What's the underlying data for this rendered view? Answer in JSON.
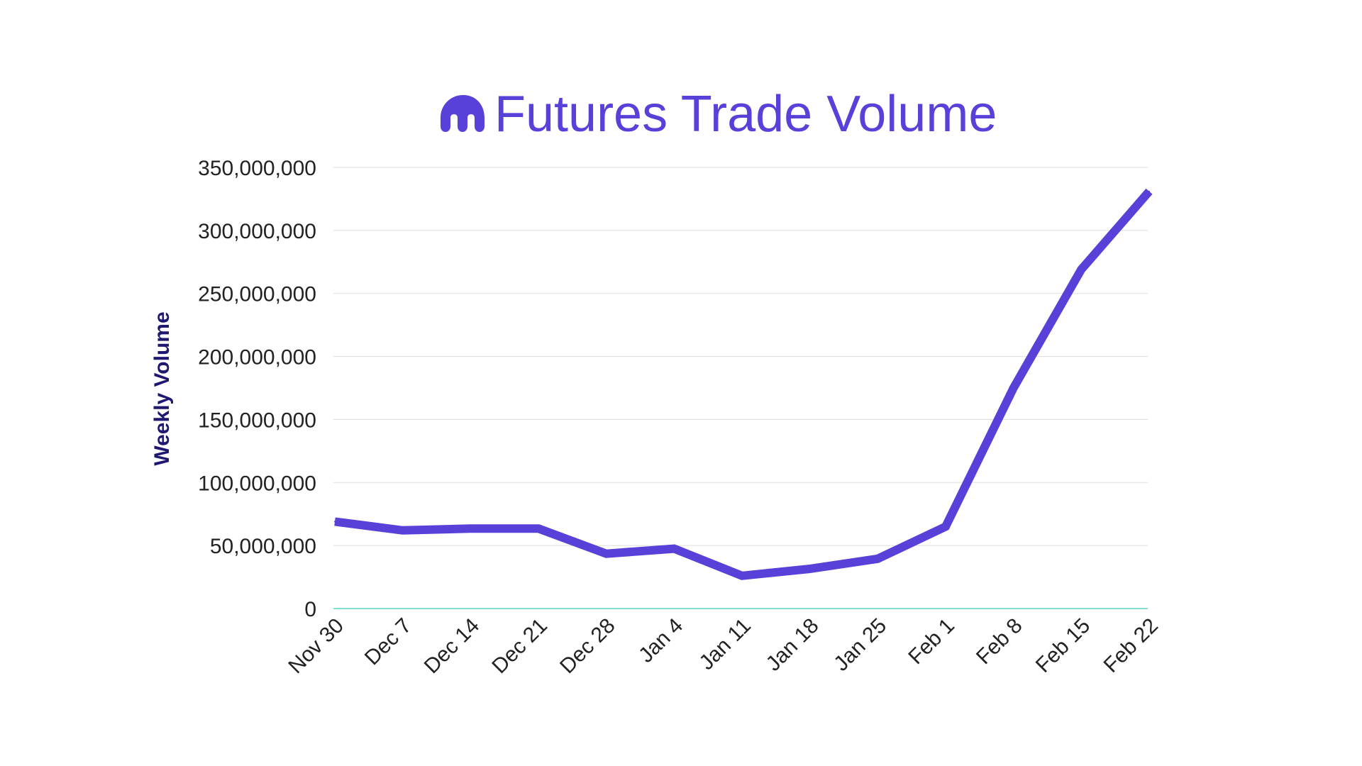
{
  "logo": {
    "icon": "kraken-logo-icon"
  },
  "colors": {
    "title": "#5741d9",
    "line": "#5741d9",
    "ylabel": "#1f1870",
    "grid": "#dddddd",
    "baseline": "#5ad3c7",
    "tick_text": "#222222"
  },
  "chart_data": {
    "type": "line",
    "title": "Futures Trade Volume",
    "xlabel": "",
    "ylabel": "Weekly Volume",
    "categories": [
      "Nov 30",
      "Dec 7",
      "Dec 14",
      "Dec 21",
      "Dec 28",
      "Jan 4",
      "Jan 11",
      "Jan 18",
      "Jan 25",
      "Feb 1",
      "Feb 8",
      "Feb 15",
      "Feb 22"
    ],
    "series": [
      {
        "values": [
          69000000,
          62000000,
          63500000,
          63500000,
          43500000,
          47500000,
          26000000,
          31500000,
          39500000,
          65000000,
          175000000,
          269000000,
          331000000
        ]
      }
    ],
    "ylim": [
      0,
      350000000
    ],
    "yticks": [
      0,
      50000000,
      100000000,
      150000000,
      200000000,
      250000000,
      300000000,
      350000000
    ],
    "ytick_labels": [
      "0",
      "50,000,000",
      "100,000,000",
      "150,000,000",
      "200,000,000",
      "250,000,000",
      "300,000,000",
      "350,000,000"
    ],
    "grid": true,
    "legend": "none"
  }
}
